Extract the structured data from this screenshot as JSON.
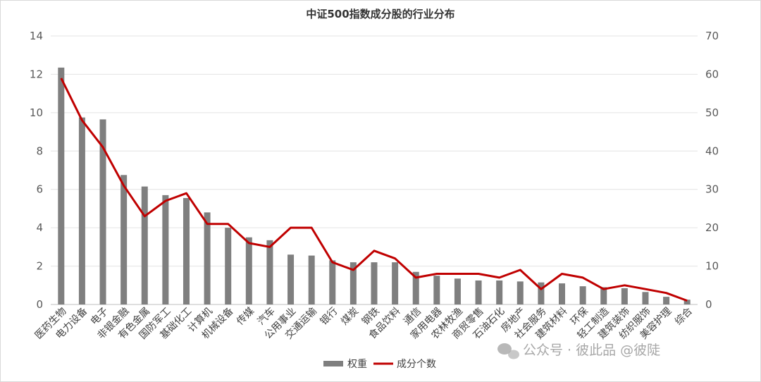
{
  "chart_data": {
    "type": "bar",
    "title": "中证500指数成分股的行业分布",
    "categories": [
      "医药生物",
      "电力设备",
      "电子",
      "非银金融",
      "有色金属",
      "国防军工",
      "基础化工",
      "计算机",
      "机械设备",
      "传媒",
      "汽车",
      "公用事业",
      "交通运输",
      "银行",
      "煤炭",
      "钢铁",
      "食品饮料",
      "通信",
      "家用电器",
      "农林牧渔",
      "商贸零售",
      "石油石化",
      "房地产",
      "社会服务",
      "建筑材料",
      "环保",
      "轻工制造",
      "建筑装饰",
      "纺织服饰",
      "美容护理",
      "综合"
    ],
    "series": [
      {
        "name": "权重",
        "type": "bar",
        "axis": "left",
        "color": "#7f7f7f",
        "values": [
          12.35,
          9.75,
          9.65,
          6.75,
          6.15,
          5.7,
          5.55,
          4.8,
          4.0,
          3.5,
          3.35,
          2.6,
          2.55,
          2.3,
          2.2,
          2.2,
          2.2,
          1.7,
          1.5,
          1.35,
          1.25,
          1.25,
          1.2,
          1.15,
          1.1,
          0.95,
          0.9,
          0.85,
          0.65,
          0.4,
          0.25
        ]
      },
      {
        "name": "成分个数",
        "type": "line",
        "axis": "right",
        "color": "#c00000",
        "values": [
          59,
          48,
          41,
          31,
          23,
          27,
          29,
          21,
          21,
          16,
          15,
          20,
          20,
          11,
          9,
          14,
          12,
          7,
          8,
          8,
          8,
          7,
          9,
          4,
          8,
          7,
          4,
          5,
          4,
          3,
          1
        ]
      }
    ],
    "ylim_left": [
      0,
      14
    ],
    "yticks_left": [
      0,
      2,
      4,
      6,
      8,
      10,
      12,
      14
    ],
    "ylim_right": [
      0,
      70
    ],
    "yticks_right": [
      0,
      10,
      20,
      30,
      40,
      50,
      60,
      70
    ],
    "grid": true,
    "legend": "bottom"
  },
  "watermark": {
    "text": "公众号 · 彼此品 @彼陡",
    "icon": "wechat-icon"
  }
}
